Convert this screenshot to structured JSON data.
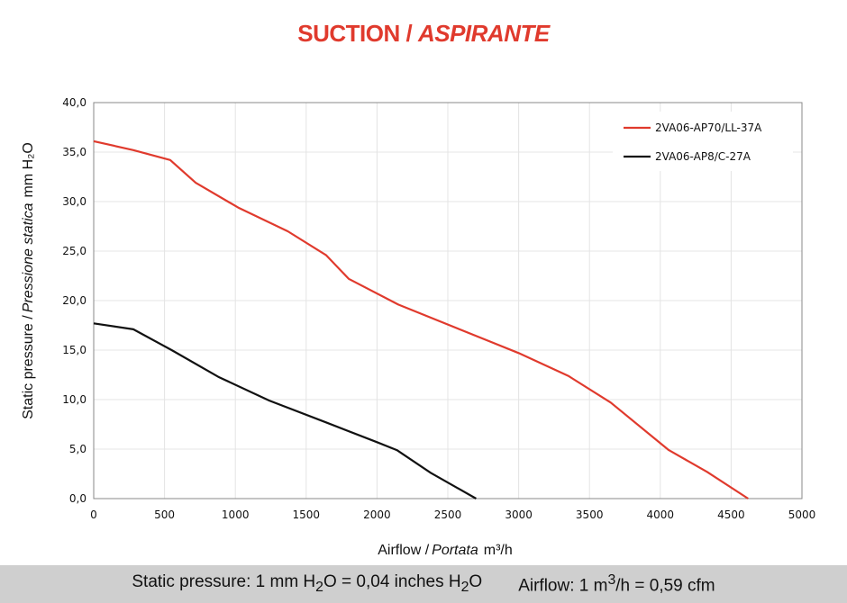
{
  "title": {
    "main": "SUCTION /",
    "italic": "ASPIRANTE"
  },
  "chart_data": {
    "type": "line",
    "xlim": [
      0,
      5000
    ],
    "ylim": [
      0,
      40
    ],
    "x_ticks": [
      "0",
      "500",
      "1000",
      "1500",
      "2000",
      "2500",
      "3000",
      "3500",
      "4000",
      "4500",
      "5000"
    ],
    "y_ticks": [
      "0,0",
      "5,0",
      "10,0",
      "15,0",
      "20,0",
      "25,0",
      "30,0",
      "35,0",
      "40,0"
    ],
    "xlabel": {
      "main": "Airflow /",
      "italic": "Portata",
      "unit": "m³/h"
    },
    "ylabel": {
      "main": "Static pressure /",
      "italic": "Pressione statica",
      "unit": "mm H₂O"
    },
    "grid": true,
    "legend_position": "top-right",
    "series": [
      {
        "name": "2VA06-AP70/LL-37A",
        "color": "#e03a2d",
        "points": [
          [
            0,
            36.1
          ],
          [
            280,
            35.2
          ],
          [
            540,
            34.2
          ],
          [
            720,
            31.9
          ],
          [
            1020,
            29.4
          ],
          [
            1370,
            27.0
          ],
          [
            1640,
            24.6
          ],
          [
            1800,
            22.2
          ],
          [
            2150,
            19.6
          ],
          [
            3000,
            14.7
          ],
          [
            3350,
            12.4
          ],
          [
            3650,
            9.7
          ],
          [
            4060,
            4.9
          ],
          [
            4330,
            2.7
          ],
          [
            4620,
            0.0
          ]
        ]
      },
      {
        "name": "2VA06-AP8/C-27A",
        "color": "#111111",
        "points": [
          [
            0,
            17.7
          ],
          [
            280,
            17.1
          ],
          [
            550,
            15.0
          ],
          [
            880,
            12.3
          ],
          [
            1240,
            9.9
          ],
          [
            1640,
            7.7
          ],
          [
            2000,
            5.7
          ],
          [
            2140,
            4.9
          ],
          [
            2380,
            2.6
          ],
          [
            2700,
            0.0
          ]
        ]
      }
    ]
  },
  "footer": {
    "pressure_prefix": "Static pressure: 1 mm H",
    "pressure_sub": "2",
    "pressure_mid": "O = 0,04 inches H",
    "pressure_sub2": "2",
    "pressure_end": "O",
    "airflow_prefix": "Airflow: 1 m",
    "airflow_sup": "3",
    "airflow_end": "/h = 0,59 cfm"
  }
}
